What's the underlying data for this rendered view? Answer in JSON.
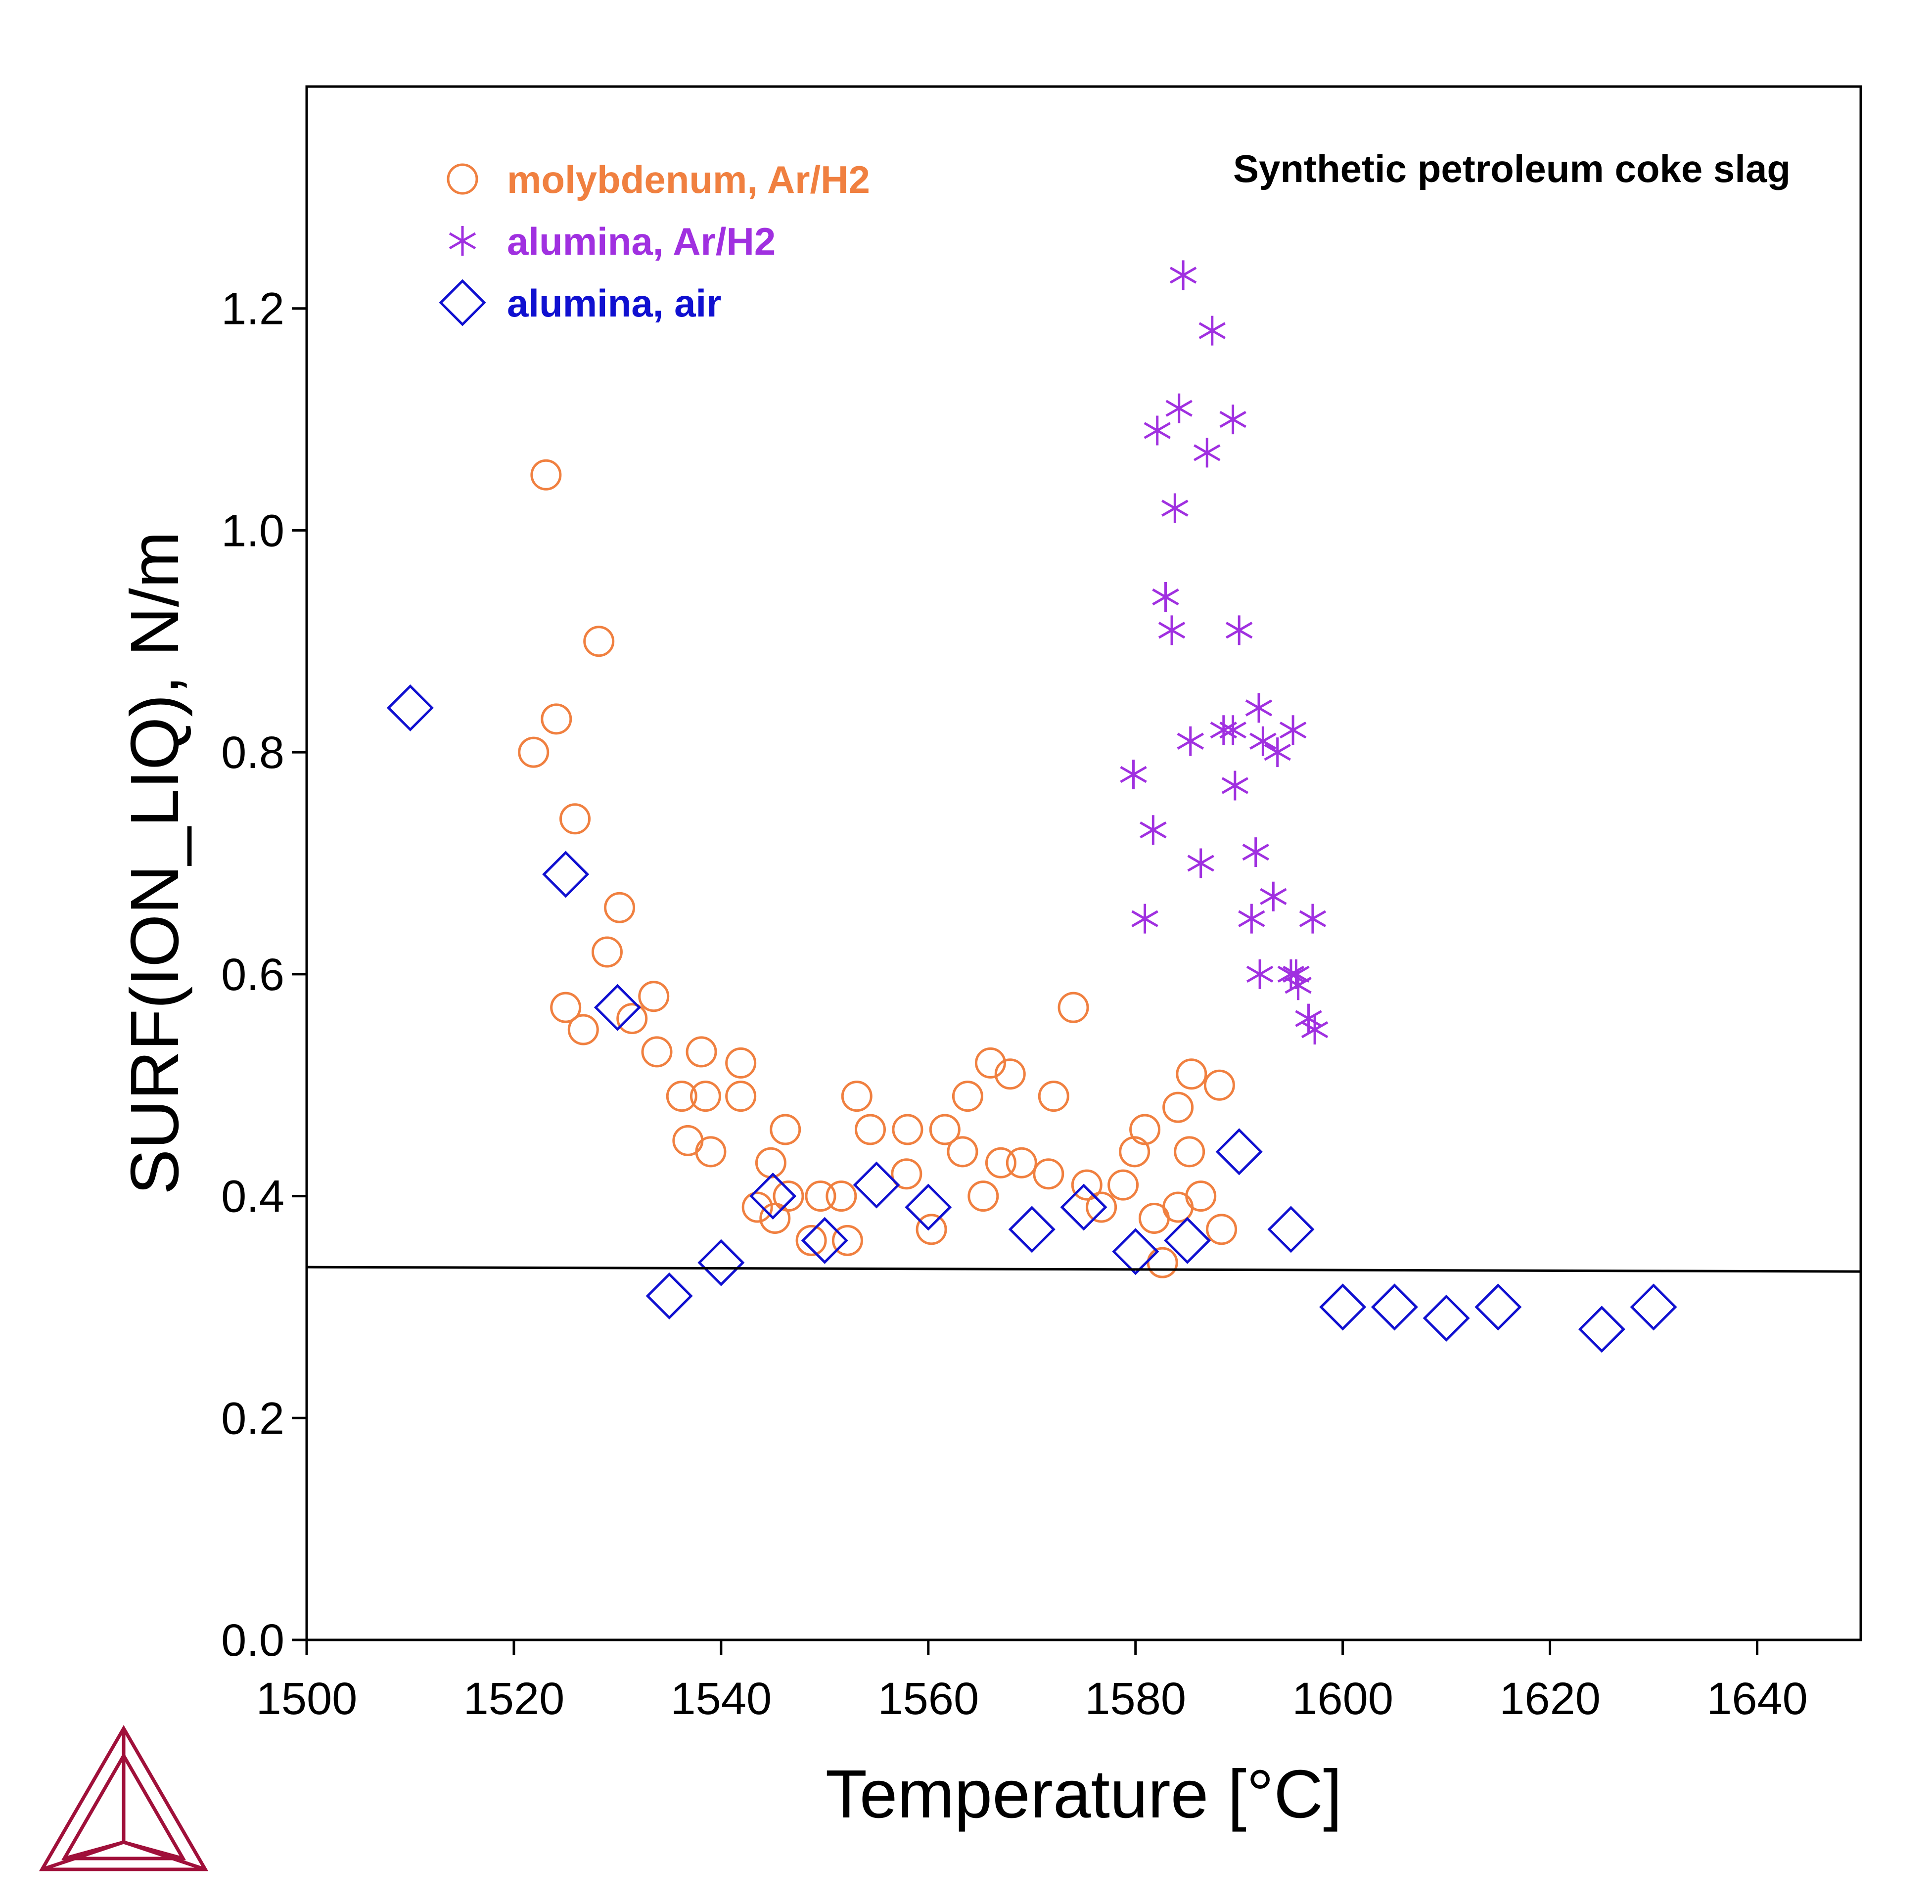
{
  "chart_data": {
    "type": "scatter",
    "xlabel": "Temperature [°C]",
    "ylabel": "SURF(ION_LIQ), N/m",
    "annotation": "Synthetic petroleum coke slag",
    "xlim": [
      1500,
      1650
    ],
    "ylim": [
      0.0,
      1.4
    ],
    "xticks": [
      "1500",
      "1520",
      "1540",
      "1560",
      "1580",
      "1600",
      "1620",
      "1640"
    ],
    "yticks": [
      "0.0",
      "0.2",
      "0.4",
      "0.6",
      "0.8",
      "1.0",
      "1.2"
    ],
    "grid": false,
    "legend_position": "top-left",
    "series": [
      {
        "name": "molybdenum, Ar/H2",
        "marker": "circle",
        "color": "#F08040",
        "points": [
          [
            1521.9,
            0.8
          ],
          [
            1523.1,
            1.05
          ],
          [
            1524.1,
            0.83
          ],
          [
            1525.0,
            0.57
          ],
          [
            1525.9,
            0.74
          ],
          [
            1526.7,
            0.55
          ],
          [
            1528.2,
            0.9
          ],
          [
            1529.0,
            0.62
          ],
          [
            1530.2,
            0.66
          ],
          [
            1531.4,
            0.56
          ],
          [
            1533.5,
            0.58
          ],
          [
            1533.8,
            0.53
          ],
          [
            1536.2,
            0.49
          ],
          [
            1536.8,
            0.45
          ],
          [
            1538.1,
            0.53
          ],
          [
            1538.5,
            0.49
          ],
          [
            1539.0,
            0.44
          ],
          [
            1541.9,
            0.52
          ],
          [
            1541.9,
            0.49
          ],
          [
            1543.5,
            0.39
          ],
          [
            1544.8,
            0.43
          ],
          [
            1545.2,
            0.38
          ],
          [
            1546.2,
            0.46
          ],
          [
            1546.5,
            0.4
          ],
          [
            1548.7,
            0.36
          ],
          [
            1549.6,
            0.4
          ],
          [
            1551.6,
            0.4
          ],
          [
            1552.2,
            0.36
          ],
          [
            1553.1,
            0.49
          ],
          [
            1554.4,
            0.46
          ],
          [
            1557.9,
            0.42
          ],
          [
            1558.0,
            0.46
          ],
          [
            1560.3,
            0.37
          ],
          [
            1561.6,
            0.46
          ],
          [
            1563.3,
            0.44
          ],
          [
            1563.8,
            0.49
          ],
          [
            1565.3,
            0.4
          ],
          [
            1566.0,
            0.52
          ],
          [
            1567.0,
            0.43
          ],
          [
            1567.9,
            0.51
          ],
          [
            1569.0,
            0.43
          ],
          [
            1571.6,
            0.42
          ],
          [
            1572.1,
            0.49
          ],
          [
            1574.0,
            0.57
          ],
          [
            1575.3,
            0.41
          ],
          [
            1576.7,
            0.39
          ],
          [
            1578.8,
            0.41
          ],
          [
            1579.9,
            0.44
          ],
          [
            1580.9,
            0.46
          ],
          [
            1581.8,
            0.38
          ],
          [
            1582.6,
            0.34
          ],
          [
            1584.1,
            0.39
          ],
          [
            1584.1,
            0.48
          ],
          [
            1585.2,
            0.44
          ],
          [
            1585.4,
            0.51
          ],
          [
            1586.3,
            0.4
          ],
          [
            1588.1,
            0.5
          ],
          [
            1588.3,
            0.37
          ]
        ]
      },
      {
        "name": "alumina, Ar/H2",
        "marker": "asterisk",
        "color": "#A030E0",
        "points": [
          [
            1579.8,
            0.78
          ],
          [
            1580.9,
            0.65
          ],
          [
            1581.7,
            0.73
          ],
          [
            1582.1,
            1.09
          ],
          [
            1582.9,
            0.94
          ],
          [
            1583.5,
            0.91
          ],
          [
            1583.8,
            1.02
          ],
          [
            1584.2,
            1.11
          ],
          [
            1584.6,
            1.23
          ],
          [
            1585.3,
            0.81
          ],
          [
            1586.3,
            0.7
          ],
          [
            1586.9,
            1.07
          ],
          [
            1587.4,
            1.18
          ],
          [
            1588.5,
            0.82
          ],
          [
            1589.4,
            0.82
          ],
          [
            1589.4,
            1.1
          ],
          [
            1589.6,
            0.77
          ],
          [
            1590.0,
            0.91
          ],
          [
            1591.2,
            0.65
          ],
          [
            1591.6,
            0.71
          ],
          [
            1591.9,
            0.84
          ],
          [
            1592.0,
            0.6
          ],
          [
            1592.3,
            0.81
          ],
          [
            1593.3,
            0.67
          ],
          [
            1593.7,
            0.8
          ],
          [
            1595.0,
            0.6
          ],
          [
            1595.2,
            0.82
          ],
          [
            1595.5,
            0.6
          ],
          [
            1595.7,
            0.59
          ],
          [
            1596.7,
            0.56
          ],
          [
            1597.1,
            0.65
          ],
          [
            1597.3,
            0.55
          ]
        ]
      },
      {
        "name": "alumina, air",
        "marker": "diamond",
        "color": "#1010D0",
        "points": [
          [
            1510,
            0.84
          ],
          [
            1525,
            0.69
          ],
          [
            1530,
            0.57
          ],
          [
            1535,
            0.31
          ],
          [
            1540,
            0.34
          ],
          [
            1545,
            0.4
          ],
          [
            1550,
            0.36
          ],
          [
            1555,
            0.41
          ],
          [
            1560,
            0.39
          ],
          [
            1570,
            0.37
          ],
          [
            1575,
            0.39
          ],
          [
            1580,
            0.35
          ],
          [
            1585,
            0.36
          ],
          [
            1590,
            0.44
          ],
          [
            1595,
            0.37
          ],
          [
            1600,
            0.3
          ],
          [
            1605,
            0.3
          ],
          [
            1610,
            0.29
          ],
          [
            1615,
            0.3
          ],
          [
            1625,
            0.28
          ],
          [
            1630,
            0.3
          ]
        ]
      },
      {
        "name": "",
        "marker": "line",
        "color": "#000000",
        "points": [
          [
            1500,
            0.336
          ],
          [
            1650,
            0.332
          ]
        ]
      }
    ]
  },
  "logo": {
    "name": "tri-logo",
    "color": "#A0103A"
  }
}
